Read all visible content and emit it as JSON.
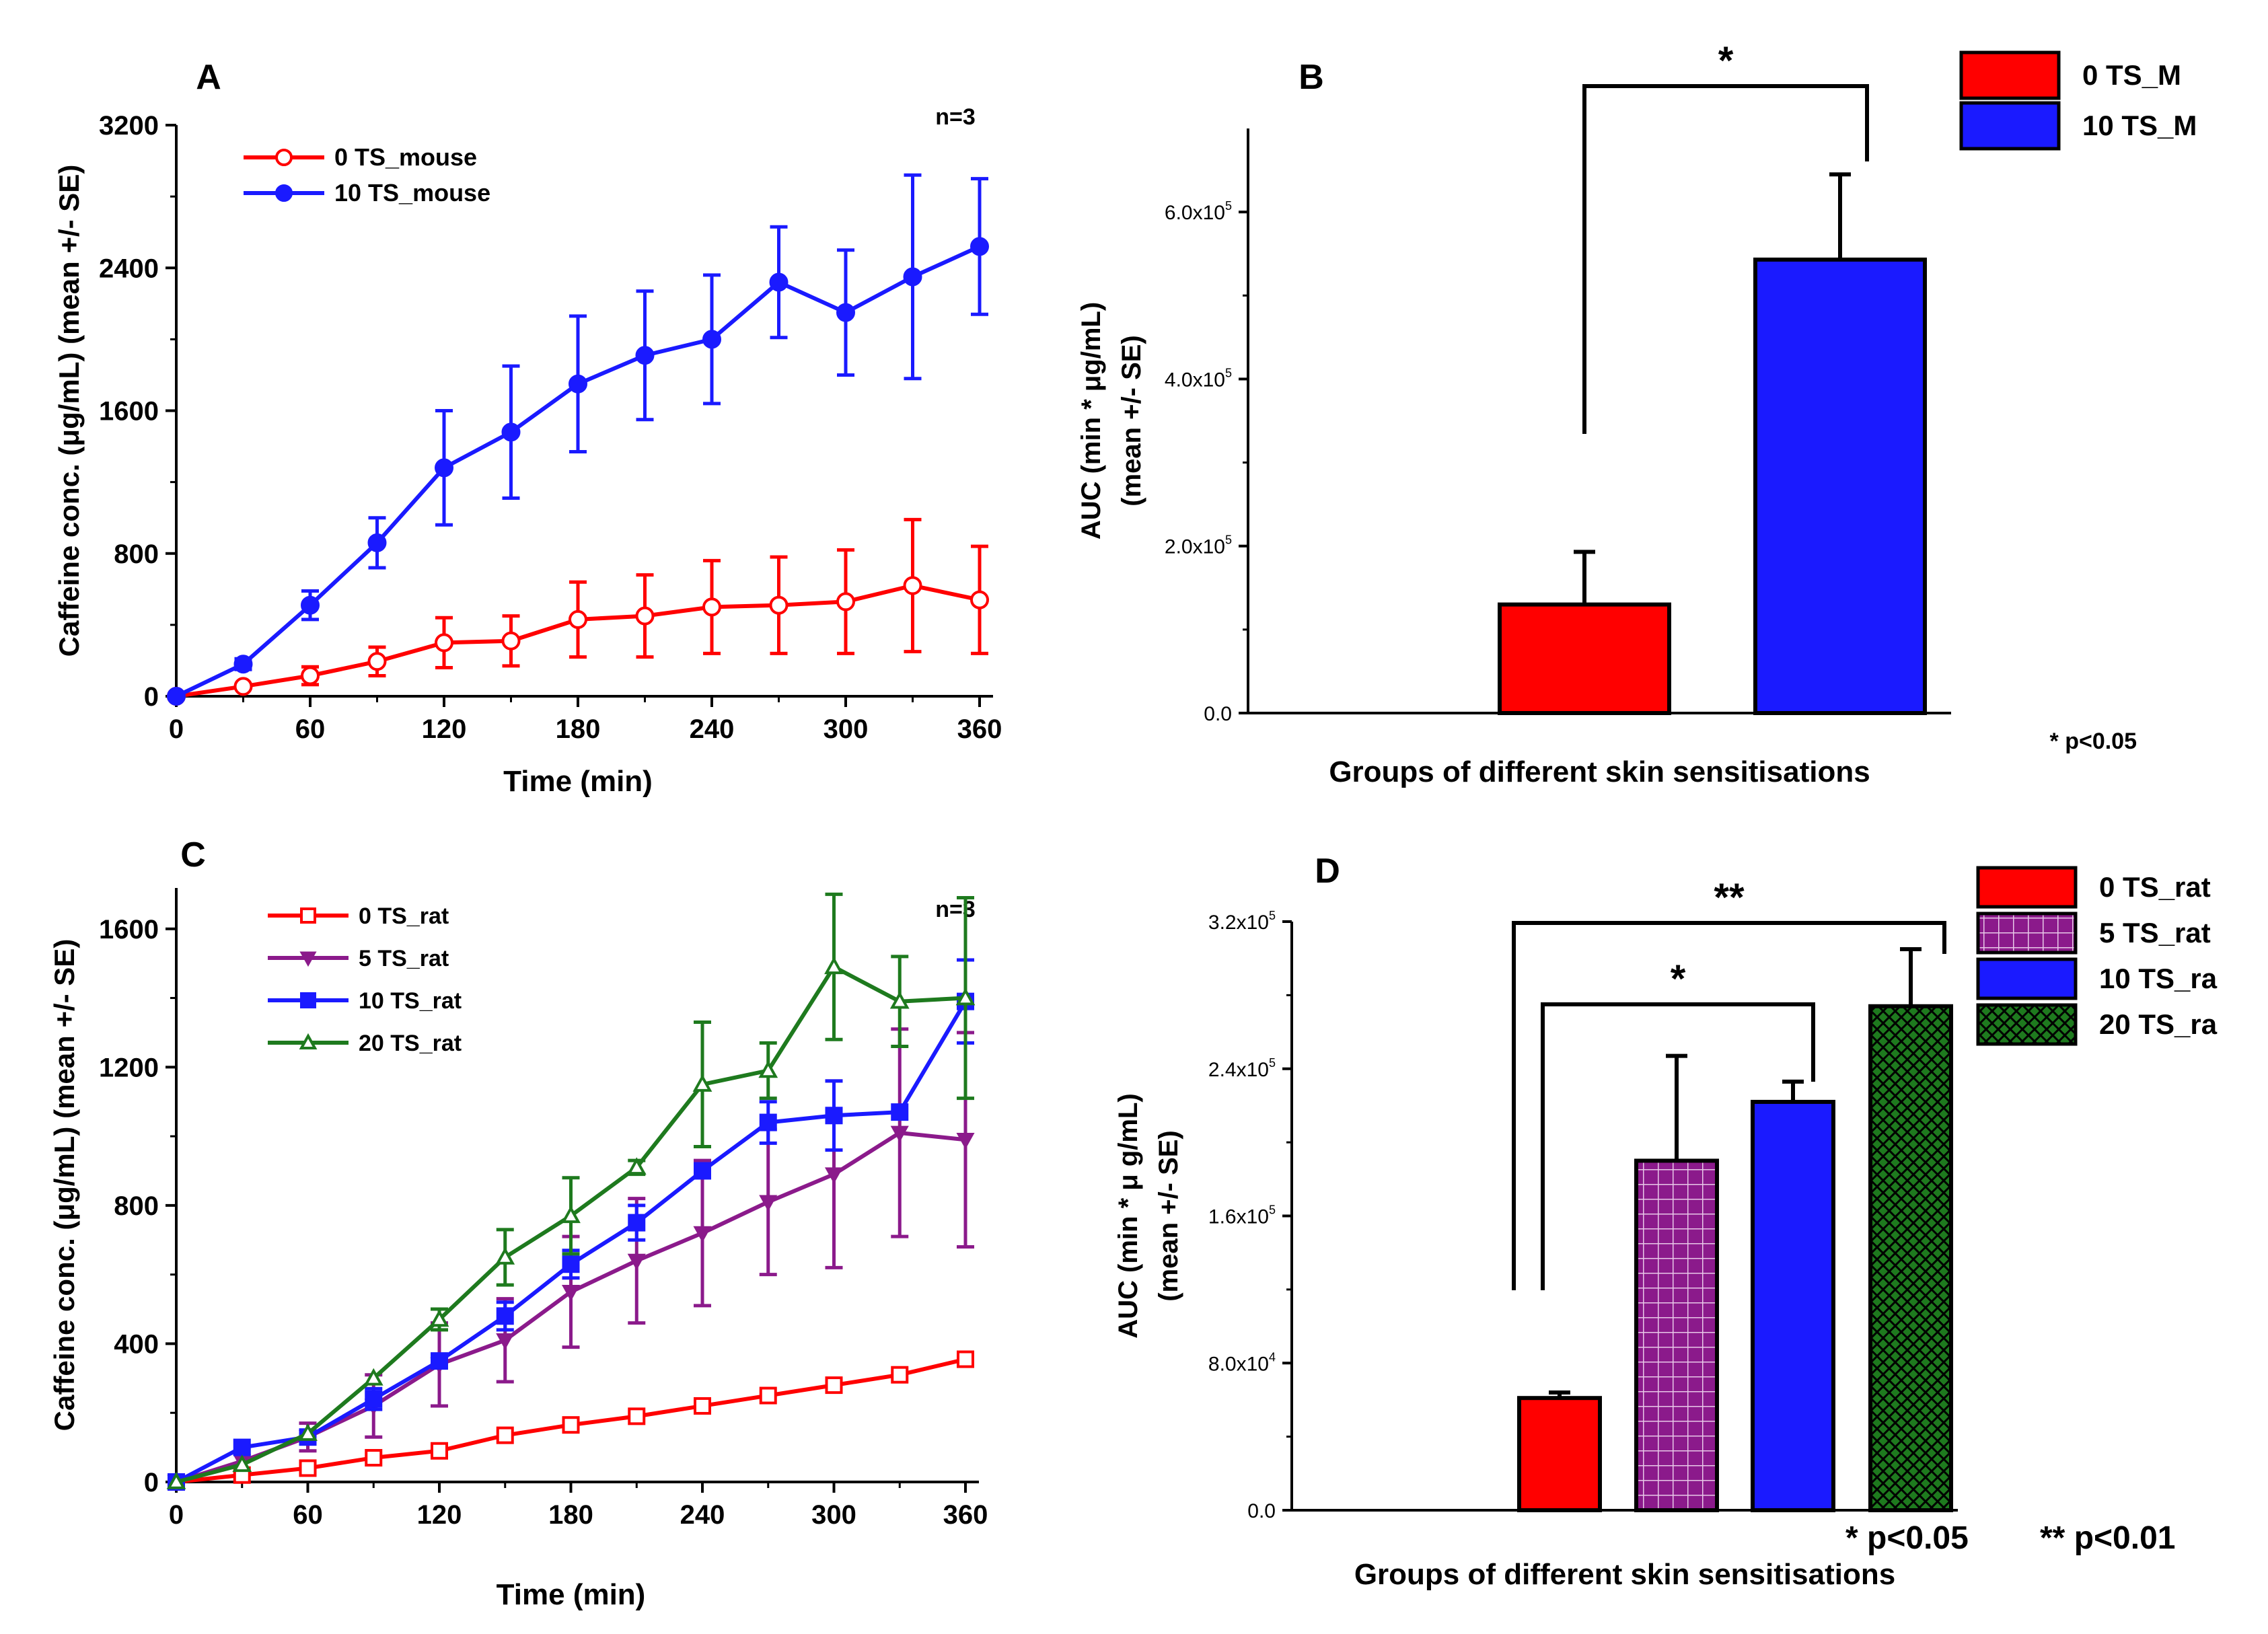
{
  "chart_data": [
    {
      "panel": "A",
      "type": "line",
      "annotation": "n=3",
      "xlabel": "Time (min)",
      "ylabel": "Caffeine conc. (μg/mL) (mean +/- SE)",
      "xlim": [
        0,
        360
      ],
      "ylim": [
        0,
        3200
      ],
      "xticks": [
        0,
        60,
        120,
        180,
        240,
        300,
        360
      ],
      "yticks": [
        0,
        800,
        1600,
        2400,
        3200
      ],
      "series": [
        {
          "name": "0 TS_mouse",
          "color": "#ff0000",
          "marker": "circle-open",
          "x": [
            0,
            30,
            60,
            90,
            120,
            150,
            180,
            210,
            240,
            270,
            300,
            330,
            360
          ],
          "y": [
            0,
            55,
            115,
            195,
            300,
            310,
            430,
            450,
            500,
            510,
            530,
            620,
            540
          ],
          "err": [
            0,
            10,
            50,
            80,
            140,
            140,
            210,
            230,
            260,
            270,
            290,
            370,
            300
          ]
        },
        {
          "name": "10 TS_mouse",
          "color": "#1a1aff",
          "marker": "circle-filled",
          "x": [
            0,
            30,
            60,
            90,
            120,
            150,
            180,
            210,
            240,
            270,
            300,
            330,
            360
          ],
          "y": [
            0,
            180,
            510,
            860,
            1280,
            1480,
            1750,
            1910,
            2000,
            2320,
            2150,
            2350,
            2520
          ],
          "err": [
            0,
            30,
            80,
            140,
            320,
            370,
            380,
            360,
            360,
            310,
            350,
            570,
            380
          ]
        }
      ]
    },
    {
      "panel": "B",
      "type": "bar",
      "xlabel": "Groups of different skin sensitisations",
      "ylabel": "AUC (min * μg/mL) (mean +/- SE)",
      "ylim": [
        0,
        700000
      ],
      "yticks": [
        0,
        200000,
        400000,
        600000
      ],
      "ytick_labels": [
        {
          "text": "0.0",
          "mant": "",
          "exp": ""
        },
        {
          "text": "",
          "mant": "2.0x10",
          "exp": "5"
        },
        {
          "text": "",
          "mant": "4.0x10",
          "exp": "5"
        },
        {
          "text": "",
          "mant": "6.0x10",
          "exp": "5"
        }
      ],
      "categories": [
        "0 TS_M",
        "10 TS_M"
      ],
      "values": [
        130000,
        543000
      ],
      "err": [
        63000,
        102000
      ],
      "colors": [
        "#ff0000",
        "#1a1aff"
      ],
      "patterns": [
        "solid",
        "solid"
      ],
      "legend": [
        "0 TS_M",
        "10 TS_M"
      ],
      "significance": [
        {
          "from": 0,
          "to": 1,
          "label": "*"
        }
      ],
      "footnote": "* p<0.05"
    },
    {
      "panel": "C",
      "type": "line",
      "annotation": "n=3",
      "xlabel": "Time (min)",
      "ylabel": "Caffeine conc. (μg/mL) (mean +/- SE)",
      "xlim": [
        0,
        360
      ],
      "ylim": [
        0,
        1800
      ],
      "xticks": [
        0,
        60,
        120,
        180,
        240,
        300,
        360
      ],
      "yticks": [
        0,
        400,
        800,
        1200,
        1600
      ],
      "series": [
        {
          "name": "0 TS_rat",
          "color": "#ff0000",
          "marker": "square-open",
          "x": [
            0,
            30,
            60,
            90,
            120,
            150,
            180,
            210,
            240,
            270,
            300,
            330,
            360
          ],
          "y": [
            0,
            20,
            40,
            70,
            90,
            135,
            165,
            190,
            220,
            250,
            280,
            310,
            355
          ],
          "err": [
            0,
            0,
            0,
            0,
            0,
            0,
            0,
            0,
            0,
            0,
            0,
            0,
            0
          ]
        },
        {
          "name": "5 TS_rat",
          "color": "#8b1a8b",
          "marker": "triangle-down",
          "x": [
            0,
            30,
            60,
            90,
            120,
            150,
            180,
            210,
            240,
            270,
            300,
            330,
            360
          ],
          "y": [
            0,
            60,
            130,
            220,
            340,
            410,
            550,
            640,
            720,
            810,
            890,
            1010,
            990
          ],
          "err": [
            0,
            0,
            40,
            90,
            120,
            120,
            160,
            180,
            210,
            210,
            270,
            300,
            310
          ]
        },
        {
          "name": "10 TS_rat",
          "color": "#1a1aff",
          "marker": "square-filled",
          "x": [
            0,
            30,
            60,
            90,
            120,
            150,
            180,
            210,
            240,
            270,
            300,
            330,
            360
          ],
          "y": [
            0,
            100,
            130,
            240,
            350,
            480,
            630,
            750,
            900,
            1040,
            1060,
            1070,
            1390
          ],
          "err": [
            0,
            0,
            0,
            30,
            0,
            40,
            40,
            50,
            0,
            60,
            100,
            0,
            120
          ]
        },
        {
          "name": "20 TS_rat",
          "color": "#1e7a1e",
          "marker": "triangle-open",
          "x": [
            0,
            30,
            60,
            90,
            120,
            150,
            180,
            210,
            240,
            270,
            300,
            330,
            360
          ],
          "y": [
            0,
            50,
            140,
            300,
            470,
            650,
            770,
            910,
            1150,
            1190,
            1490,
            1390,
            1400
          ],
          "err": [
            0,
            0,
            0,
            0,
            30,
            80,
            110,
            20,
            180,
            80,
            210,
            130,
            290
          ]
        }
      ]
    },
    {
      "panel": "D",
      "type": "bar",
      "xlabel": "Groups of different skin sensitisations",
      "ylabel": "AUC (min * μ g/mL) (mean +/- SE)",
      "ylim": [
        0,
        320000
      ],
      "yticks": [
        0,
        80000,
        160000,
        240000,
        320000
      ],
      "ytick_labels": [
        {
          "text": "0.0",
          "mant": "",
          "exp": ""
        },
        {
          "text": "",
          "mant": "8.0x10",
          "exp": "4"
        },
        {
          "text": "",
          "mant": "1.6x10",
          "exp": "5"
        },
        {
          "text": "",
          "mant": "2.4x10",
          "exp": "5"
        },
        {
          "text": "",
          "mant": "3.2x10",
          "exp": "5"
        }
      ],
      "categories": [
        "0 TS_rat",
        "5 TS_rat",
        "10 TS_rat",
        "20 TS_rat"
      ],
      "values": [
        61000,
        190000,
        222000,
        274000
      ],
      "err": [
        3000,
        57000,
        11000,
        31000
      ],
      "colors": [
        "#ff0000",
        "#8b1a8b",
        "#1a1aff",
        "#1e7a1e"
      ],
      "patterns": [
        "solid",
        "grid",
        "solid",
        "crosshatch"
      ],
      "legend": [
        "0 TS_rat",
        "5 TS_rat",
        "10 TS_ra",
        "20 TS_ra"
      ],
      "significance": [
        {
          "from": 0,
          "to": 2,
          "label": "*"
        },
        {
          "from": 0,
          "to": 3,
          "label": "**"
        }
      ],
      "footnote": "* p<0.05",
      "footnote2": "** p<0.01"
    }
  ]
}
